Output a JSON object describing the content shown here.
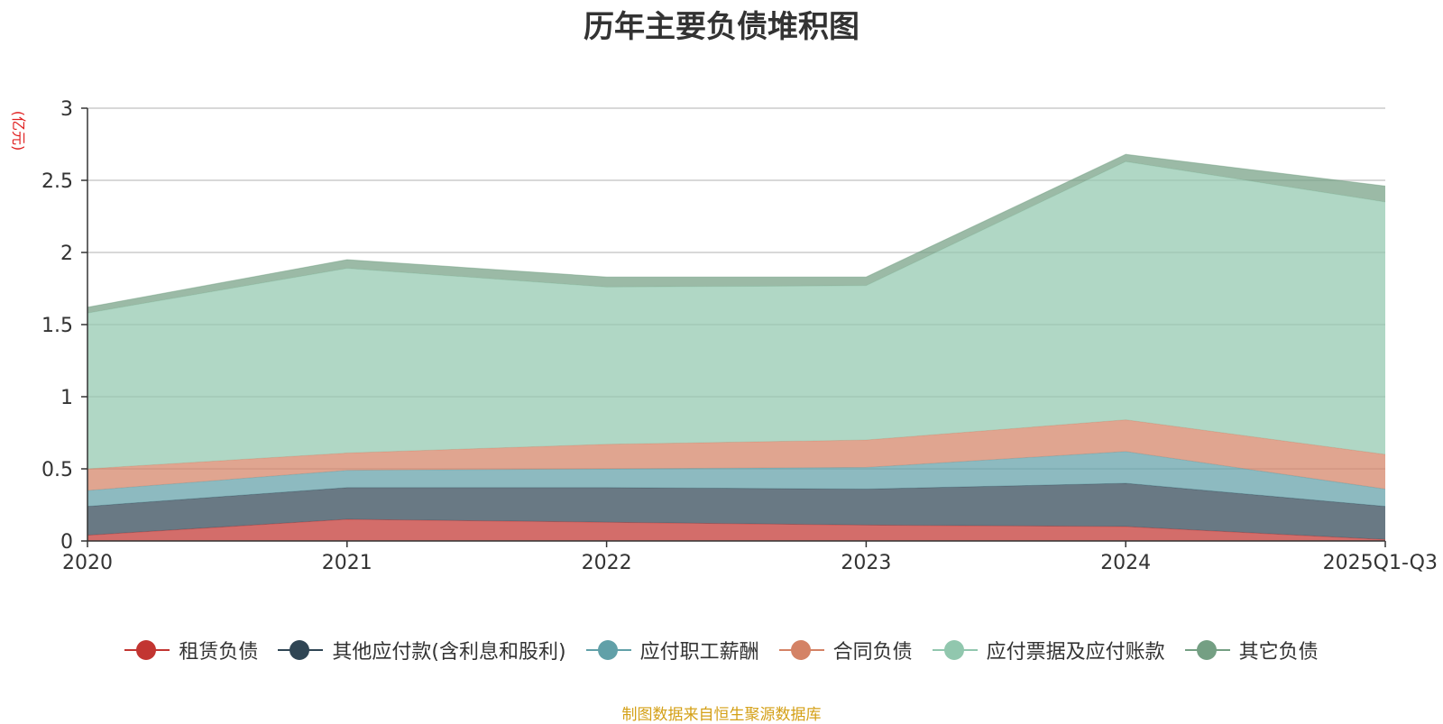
{
  "chart_data": {
    "type": "area",
    "stacked": true,
    "title": "历年主要负债堆积图",
    "ylabel": "(亿元)",
    "xlabel": "",
    "ylim": [
      0,
      3
    ],
    "yticks": [
      0,
      0.5,
      1,
      1.5,
      2,
      2.5,
      3
    ],
    "ytick_labels": [
      "0",
      "0.5",
      "1",
      "1.5",
      "2",
      "2.5",
      "3"
    ],
    "categories": [
      "2020",
      "2021",
      "2022",
      "2023",
      "2024",
      "2025Q1-Q3"
    ],
    "series": [
      {
        "name": "租赁负债",
        "color": "#c23531",
        "values": [
          0.04,
          0.15,
          0.13,
          0.11,
          0.1,
          0.01
        ]
      },
      {
        "name": "其他应付款(含利息和股利)",
        "color": "#2f4554",
        "values": [
          0.2,
          0.22,
          0.24,
          0.25,
          0.3,
          0.23
        ]
      },
      {
        "name": "应付职工薪酬",
        "color": "#61a0a8",
        "values": [
          0.11,
          0.12,
          0.13,
          0.15,
          0.22,
          0.12
        ]
      },
      {
        "name": "合同负债",
        "color": "#d48265",
        "values": [
          0.15,
          0.12,
          0.17,
          0.19,
          0.22,
          0.24
        ]
      },
      {
        "name": "应付票据及应付账款",
        "color": "#91c7ae",
        "values": [
          1.08,
          1.28,
          1.09,
          1.07,
          1.79,
          1.75
        ]
      },
      {
        "name": "其它负债",
        "color": "#749f83",
        "values": [
          0.04,
          0.06,
          0.07,
          0.06,
          0.05,
          0.11
        ]
      }
    ],
    "grid": true,
    "legend_position": "bottom"
  },
  "source_note": "制图数据来自恒生聚源数据库"
}
